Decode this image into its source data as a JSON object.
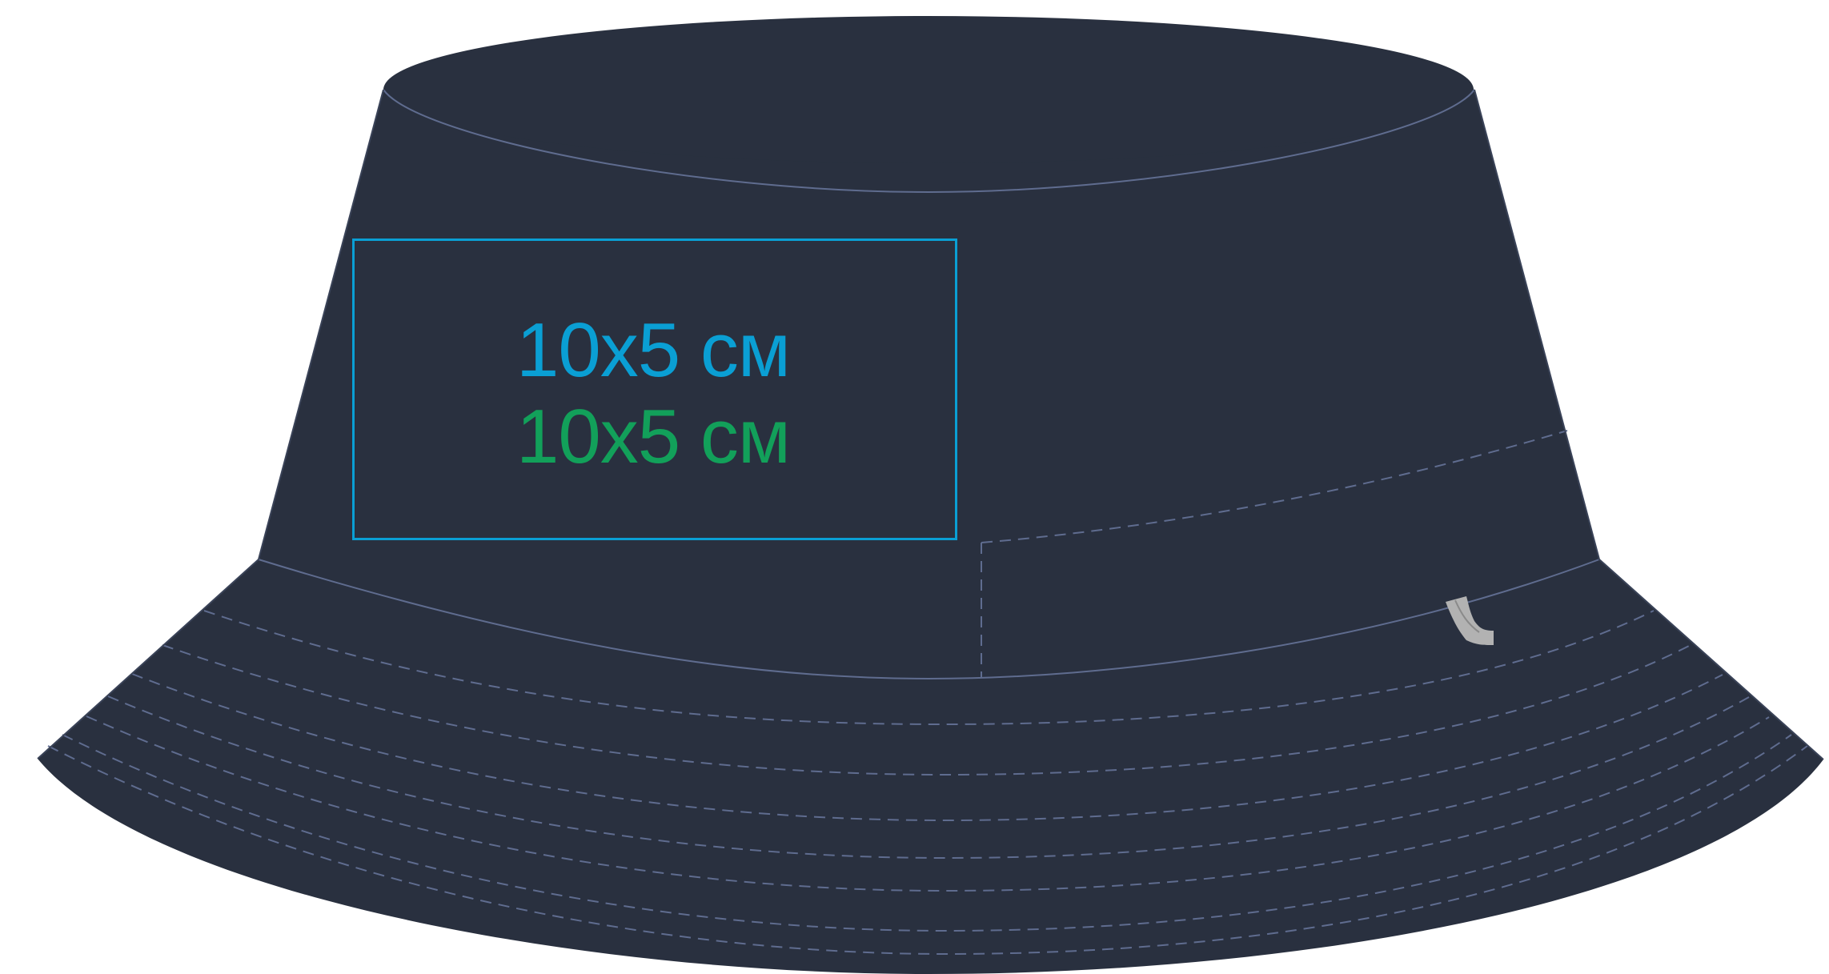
{
  "mockup": {
    "hat_color": "#29303f",
    "stitch_color": "#5f6c8f",
    "label_color": "#b2b2b2",
    "print_area_border_color": "#0a9fd4",
    "print_sizes": [
      {
        "text": "10x5 см",
        "color": "#0a9fd4"
      },
      {
        "text": "10x5 см",
        "color": "#12a05a"
      }
    ]
  }
}
